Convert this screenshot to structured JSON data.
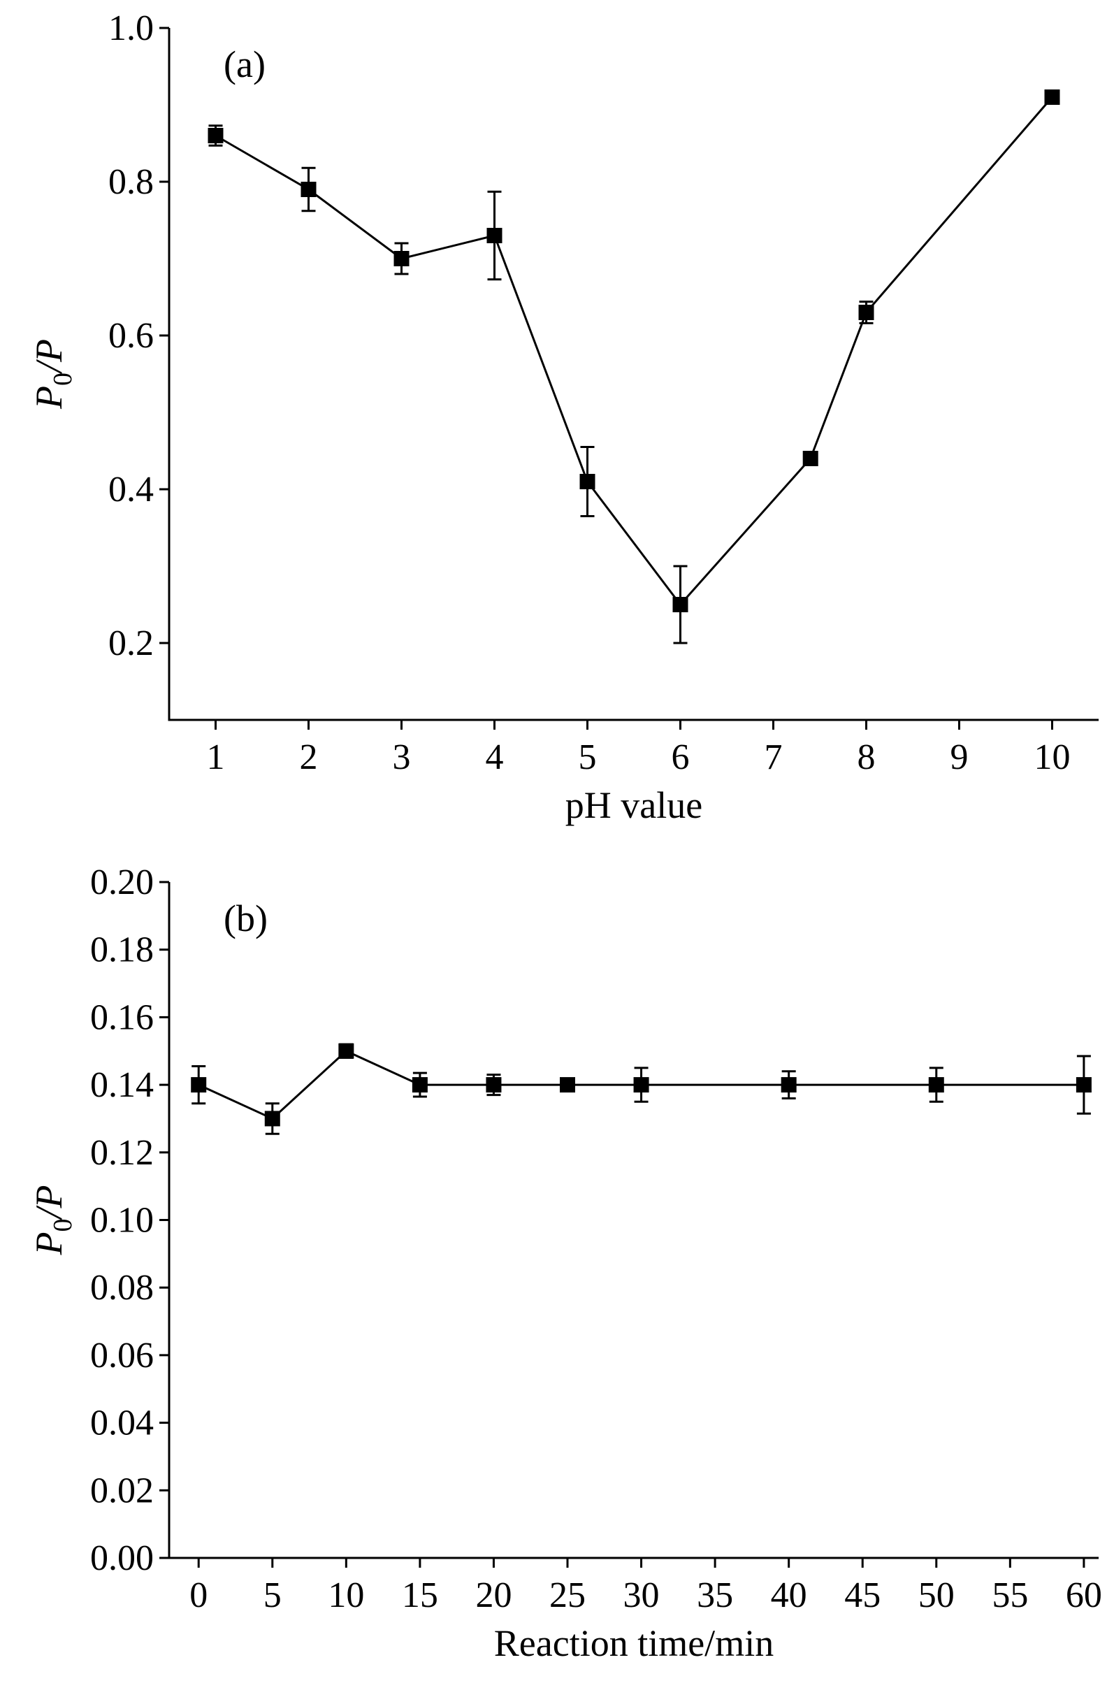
{
  "chart_data": [
    {
      "type": "line",
      "panel_label": "(a)",
      "xlabel": "pH value",
      "ylabel": {
        "main": "P",
        "sub": "0",
        "tail": "/P"
      },
      "xlim": [
        0.5,
        10.5
      ],
      "ylim": [
        0.1,
        1.0
      ],
      "x_ticks": [
        1,
        2,
        3,
        4,
        5,
        6,
        7,
        8,
        9,
        10
      ],
      "x_tick_labels": [
        "1",
        "2",
        "3",
        "4",
        "5",
        "6",
        "7",
        "8",
        "9",
        "10"
      ],
      "y_ticks": [
        0.2,
        0.4,
        0.6,
        0.8,
        1.0
      ],
      "y_tick_labels": [
        "0.2",
        "0.4",
        "0.6",
        "0.8",
        "1.0"
      ],
      "grid": false,
      "series": [
        {
          "x": [
            1,
            2,
            3,
            4,
            5,
            6,
            7.4,
            8,
            10
          ],
          "y": [
            0.86,
            0.79,
            0.7,
            0.73,
            0.41,
            0.25,
            0.44,
            0.63,
            0.91
          ],
          "err": [
            0.013,
            0.028,
            0.02,
            0.057,
            0.045,
            0.05,
            0.005,
            0.014,
            0.005
          ]
        }
      ]
    },
    {
      "type": "line",
      "panel_label": "(b)",
      "xlabel": "Reaction time/min",
      "ylabel": {
        "main": "P",
        "sub": "0",
        "tail": "/P"
      },
      "xlim": [
        -2,
        61
      ],
      "ylim": [
        0.0,
        0.2
      ],
      "x_ticks": [
        0,
        5,
        10,
        15,
        20,
        25,
        30,
        35,
        40,
        45,
        50,
        55,
        60
      ],
      "x_tick_labels": [
        "0",
        "5",
        "10",
        "15",
        "20",
        "25",
        "30",
        "35",
        "40",
        "45",
        "50",
        "55",
        "60"
      ],
      "y_ticks": [
        0.0,
        0.02,
        0.04,
        0.06,
        0.08,
        0.1,
        0.12,
        0.14,
        0.16,
        0.18,
        0.2
      ],
      "y_tick_labels": [
        "0.00",
        "0.02",
        "0.04",
        "0.06",
        "0.08",
        "0.10",
        "0.12",
        "0.14",
        "0.16",
        "0.18",
        "0.20"
      ],
      "grid": false,
      "series": [
        {
          "x": [
            0,
            5,
            10,
            15,
            20,
            25,
            30,
            40,
            50,
            60
          ],
          "y": [
            0.14,
            0.13,
            0.15,
            0.14,
            0.14,
            0.14,
            0.14,
            0.14,
            0.14,
            0.14
          ],
          "err": [
            0.0055,
            0.0045,
            0.002,
            0.0035,
            0.003,
            0.001,
            0.005,
            0.004,
            0.005,
            0.0085
          ]
        }
      ]
    }
  ]
}
